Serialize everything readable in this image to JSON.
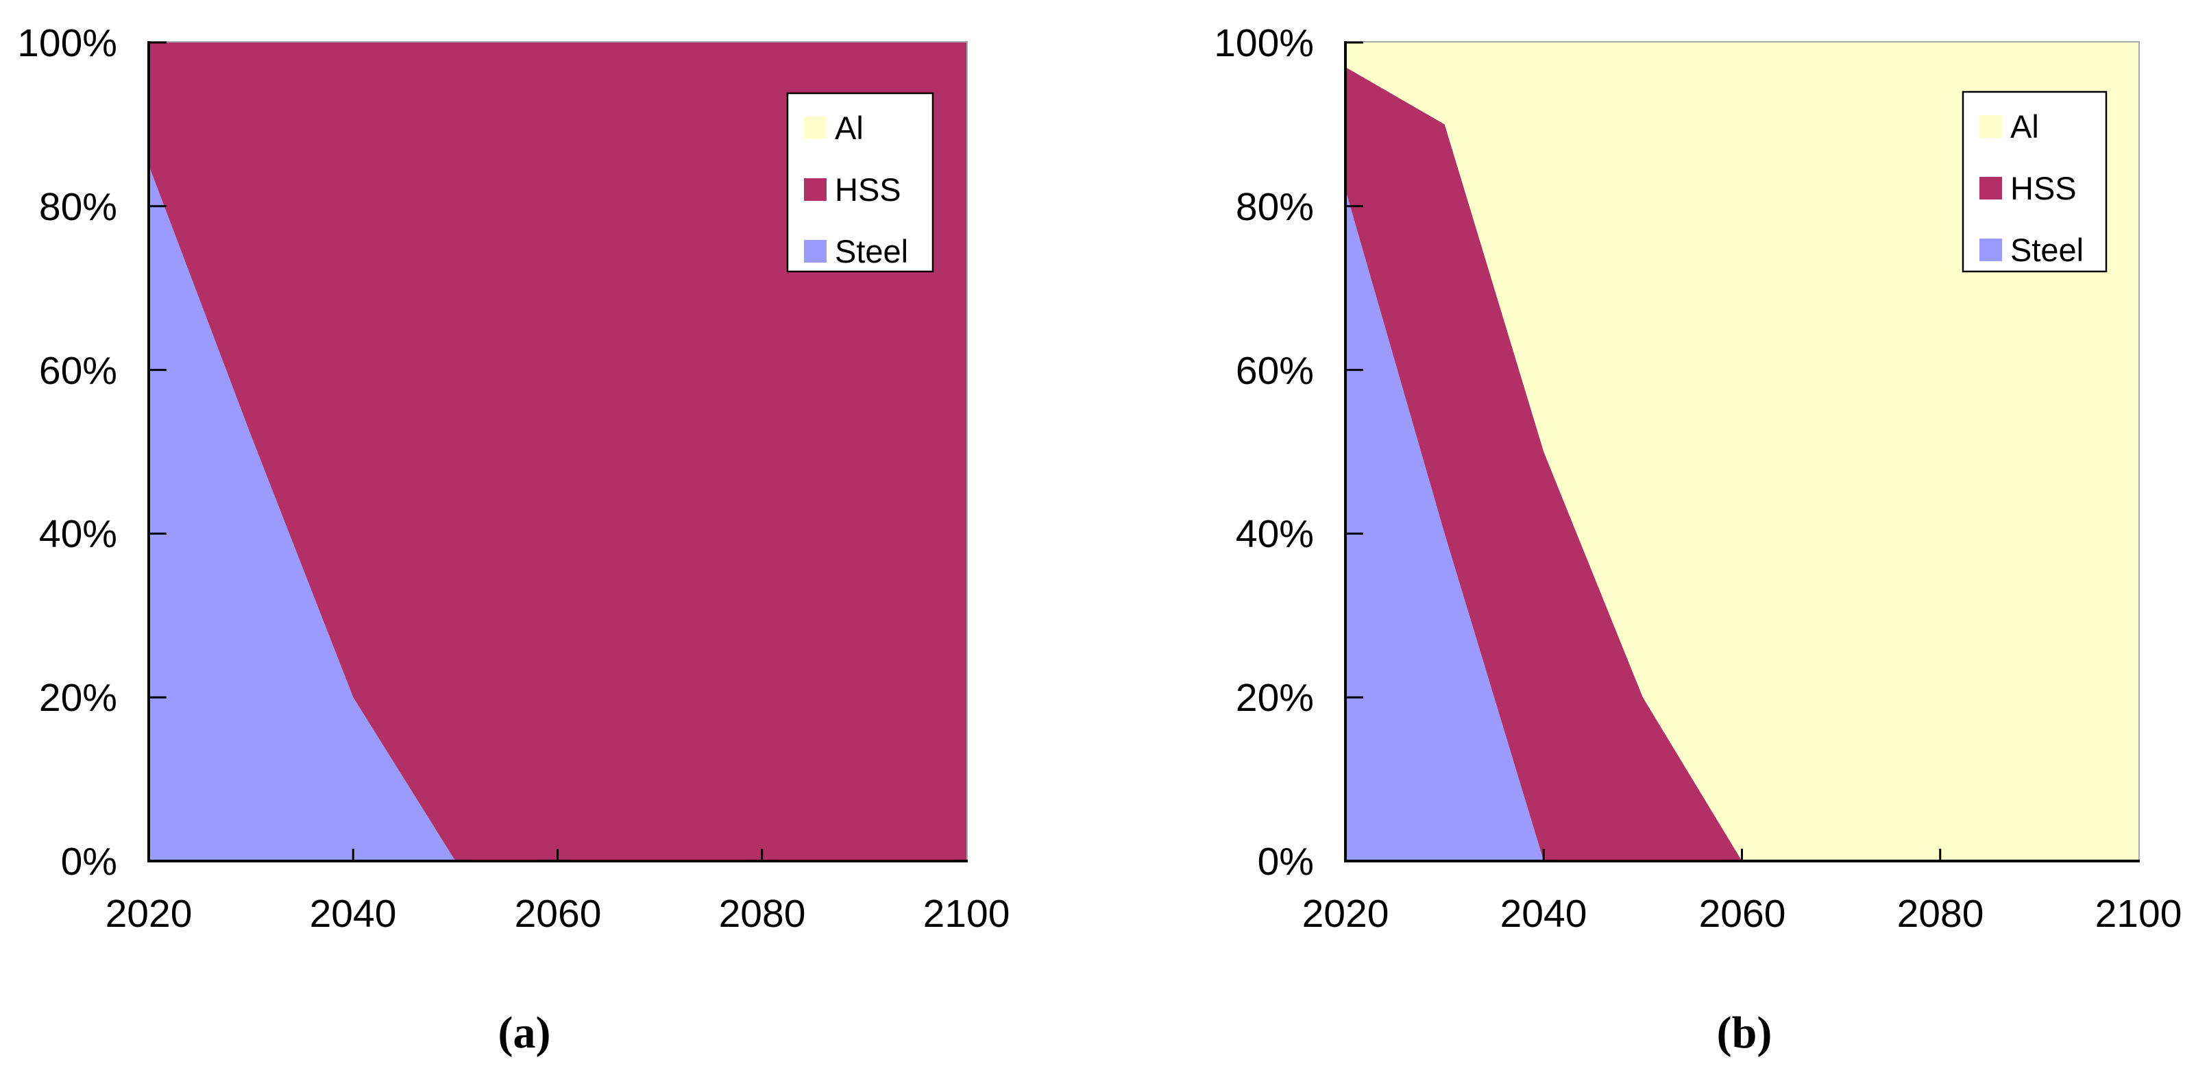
{
  "figure": {
    "background": "#FFFFFF",
    "captions": [
      "(a)",
      "(b)"
    ]
  },
  "colors": {
    "plot_border": "#A8A8A8",
    "axis": "#000000",
    "legend_border": "#000000",
    "legend_background": "#FFFFFF"
  },
  "chart_data": [
    {
      "id": "a",
      "caption": "(a)",
      "type": "area",
      "stacked": true,
      "units": "percent-of-total",
      "title": "",
      "xlabel": "",
      "ylabel": "",
      "grid": false,
      "legend_position": "inside-top-right",
      "x": [
        2020,
        2030,
        2040,
        2050,
        2060,
        2070,
        2080,
        2090,
        2100
      ],
      "x_tick_labels": [
        "2020",
        "2040",
        "2060",
        "2080",
        "2100"
      ],
      "y_tick_labels": [
        "100%",
        "80%",
        "60%",
        "40%",
        "20%",
        "0%"
      ],
      "ylim": [
        0,
        100
      ],
      "stack_order_bottom_to_top": [
        "Steel",
        "HSS",
        "Al"
      ],
      "series": [
        {
          "name": "Al",
          "color": "#FFFFCC",
          "values": [
            0,
            0,
            0,
            0,
            0,
            0,
            0,
            0,
            0
          ]
        },
        {
          "name": "HSS",
          "color": "#B23065",
          "values": [
            15,
            48,
            80,
            100,
            100,
            100,
            100,
            100,
            100
          ]
        },
        {
          "name": "Steel",
          "color": "#9B9BFD",
          "values": [
            85,
            52,
            20,
            0,
            0,
            0,
            0,
            0,
            0
          ]
        }
      ]
    },
    {
      "id": "b",
      "caption": "(b)",
      "type": "area",
      "stacked": true,
      "units": "percent-of-total",
      "title": "",
      "xlabel": "",
      "ylabel": "",
      "grid": false,
      "legend_position": "inside-top-right",
      "x": [
        2020,
        2030,
        2040,
        2050,
        2060,
        2070,
        2080,
        2090,
        2100
      ],
      "x_tick_labels": [
        "2020",
        "2040",
        "2060",
        "2080",
        "2100"
      ],
      "y_tick_labels": [
        "100%",
        "80%",
        "60%",
        "40%",
        "20%",
        "0%"
      ],
      "ylim": [
        0,
        100
      ],
      "stack_order_bottom_to_top": [
        "Steel",
        "HSS",
        "Al"
      ],
      "series": [
        {
          "name": "Al",
          "color": "#FFFFCC",
          "values": [
            3,
            10,
            50,
            80,
            100,
            100,
            100,
            100,
            100
          ]
        },
        {
          "name": "HSS",
          "color": "#B23065",
          "values": [
            15,
            50,
            50,
            20,
            0,
            0,
            0,
            0,
            0
          ]
        },
        {
          "name": "Steel",
          "color": "#9B9BFD",
          "values": [
            82,
            40,
            0,
            0,
            0,
            0,
            0,
            0,
            0
          ]
        }
      ]
    }
  ]
}
